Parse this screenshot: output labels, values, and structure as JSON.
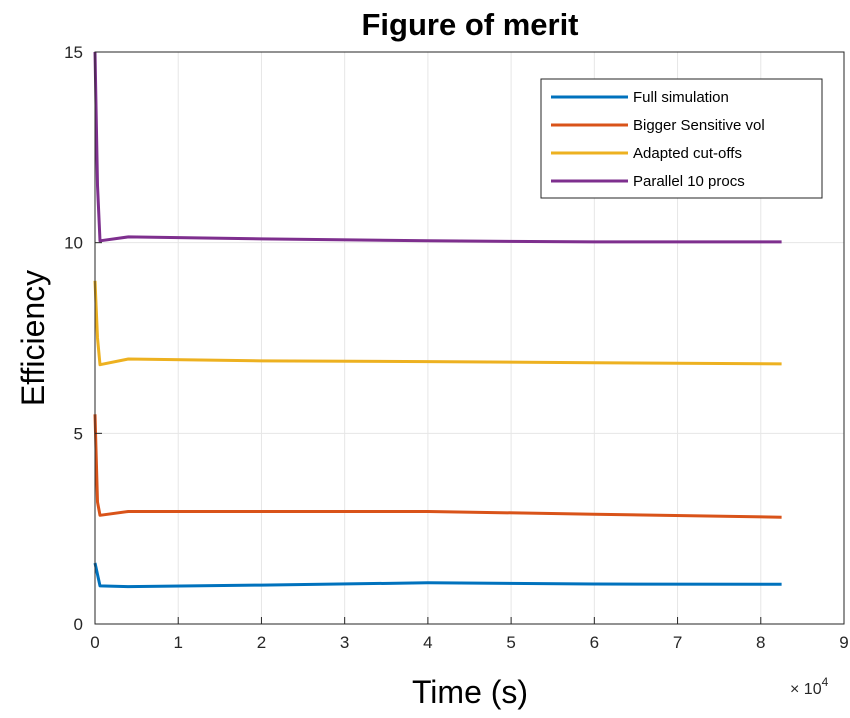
{
  "chart_data": {
    "type": "line",
    "title": "Figure of merit",
    "xlabel": "Time (s)",
    "ylabel": "Efficiency",
    "x_exponent_label": "× 10",
    "x_exponent_power": "4",
    "xlim": [
      0,
      9
    ],
    "ylim": [
      0,
      15
    ],
    "x_ticks": [
      "0",
      "1",
      "2",
      "3",
      "4",
      "5",
      "6",
      "7",
      "8",
      "9"
    ],
    "y_ticks": [
      "0",
      "5",
      "10",
      "15"
    ],
    "x_tick_values": [
      0,
      1,
      2,
      3,
      4,
      5,
      6,
      7,
      8,
      9
    ],
    "y_tick_values": [
      0,
      5,
      10,
      15
    ],
    "grid": true,
    "legend_position": "top-right",
    "series": [
      {
        "name": "Full simulation",
        "color": "#0072BD",
        "x": [
          0,
          0.03,
          0.06,
          0.4,
          2,
          4,
          6,
          8.25
        ],
        "y": [
          1.6,
          1.3,
          1.0,
          0.98,
          1.02,
          1.08,
          1.05,
          1.04
        ]
      },
      {
        "name": "Bigger Sensitive vol",
        "color": "#D95319",
        "x": [
          0,
          0.03,
          0.06,
          0.4,
          2,
          4,
          6,
          8.25
        ],
        "y": [
          5.5,
          3.2,
          2.85,
          2.95,
          2.95,
          2.95,
          2.88,
          2.8
        ]
      },
      {
        "name": "Adapted cut-offs",
        "color": "#EDB120",
        "x": [
          0,
          0.03,
          0.06,
          0.4,
          2,
          4,
          6,
          8.25
        ],
        "y": [
          9.0,
          7.5,
          6.8,
          6.95,
          6.9,
          6.88,
          6.85,
          6.82
        ]
      },
      {
        "name": "Parallel 10 procs",
        "color": "#7E2F8E",
        "x": [
          0,
          0.03,
          0.06,
          0.4,
          2,
          4,
          6,
          8.25
        ],
        "y": [
          15.0,
          11.5,
          10.05,
          10.15,
          10.1,
          10.05,
          10.02,
          10.02
        ]
      }
    ]
  }
}
